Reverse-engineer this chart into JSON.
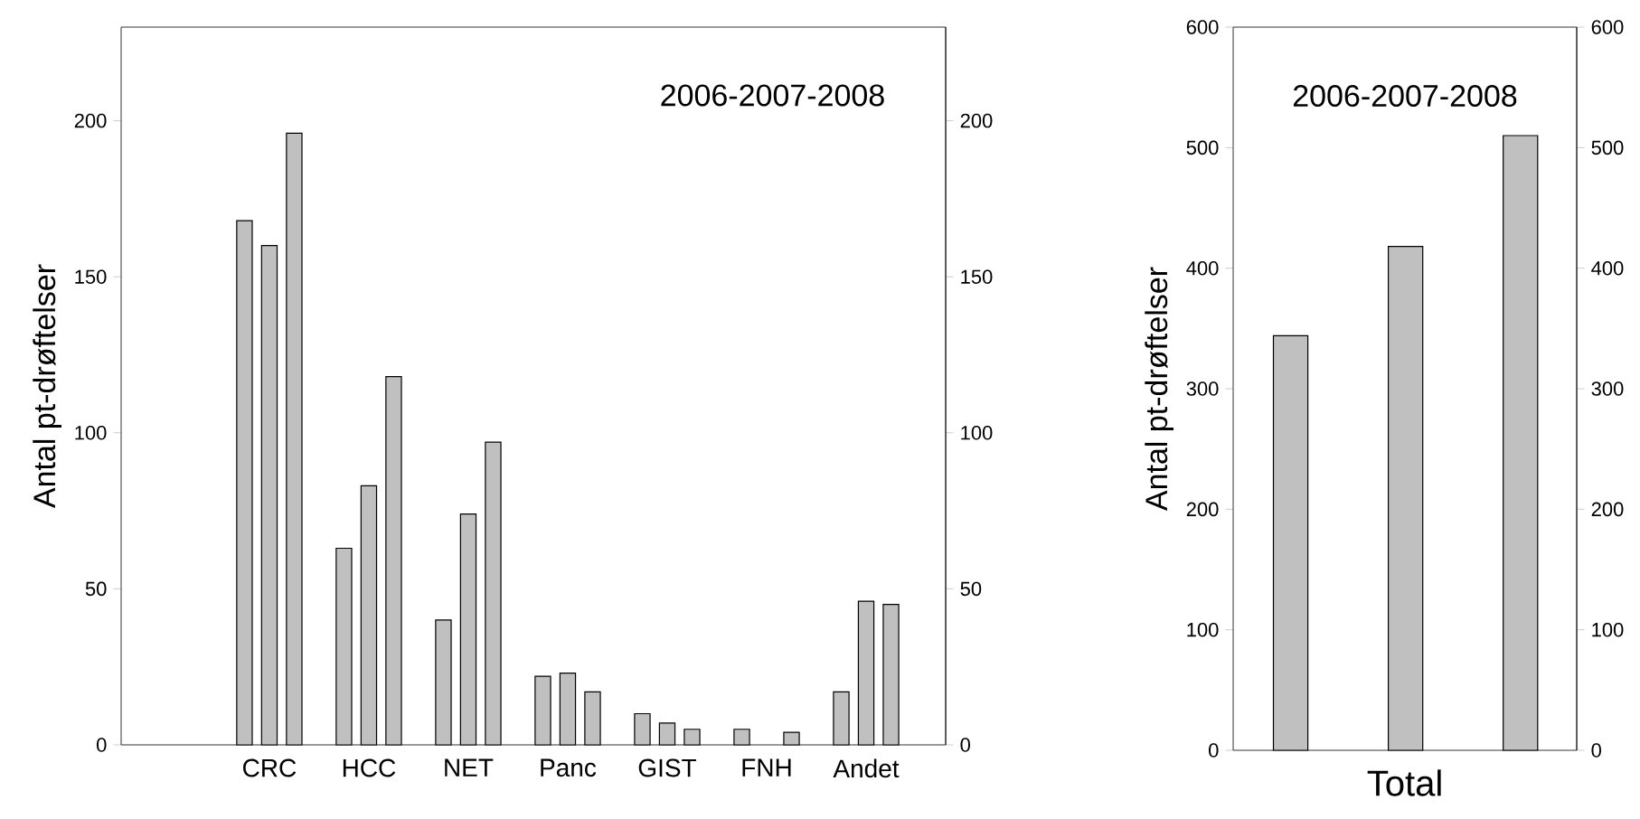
{
  "chart_data": [
    {
      "type": "bar",
      "categories": [
        "CRC",
        "HCC",
        "NET",
        "Panc",
        "GIST",
        "FNH",
        "Andet"
      ],
      "series": [
        {
          "color": "#c0c0c0",
          "values": [
            168,
            63,
            40,
            22,
            10,
            5,
            17
          ]
        },
        {
          "color": "#c0c0c0",
          "values": [
            160,
            83,
            74,
            23,
            7,
            null,
            46
          ]
        },
        {
          "color": "#c0c0c0",
          "values": [
            196,
            118,
            97,
            17,
            5,
            4,
            45
          ]
        }
      ],
      "ylabel": "Antal pt-drøftelser",
      "ylim": [
        0,
        230
      ],
      "yticks": [
        0,
        50,
        100,
        150,
        200
      ],
      "y2lim": [
        0,
        230
      ],
      "y2ticks": [
        0,
        50,
        100,
        150,
        200
      ],
      "annotations": [
        "2006-2007-2008"
      ]
    },
    {
      "type": "bar",
      "categories": [
        null,
        null,
        null
      ],
      "values": [
        344,
        418,
        510
      ],
      "color": "#c0c0c0",
      "xlabel": "Total",
      "ylabel": "Antal pt-drøftelser",
      "ylim": [
        0,
        600
      ],
      "yticks": [
        0,
        100,
        200,
        300,
        400,
        500,
        600
      ],
      "y2lim": [
        0,
        600
      ],
      "y2ticks": [
        0,
        100,
        200,
        300,
        400,
        500,
        600
      ],
      "annotations": [
        "2006-2007-2008"
      ]
    }
  ]
}
